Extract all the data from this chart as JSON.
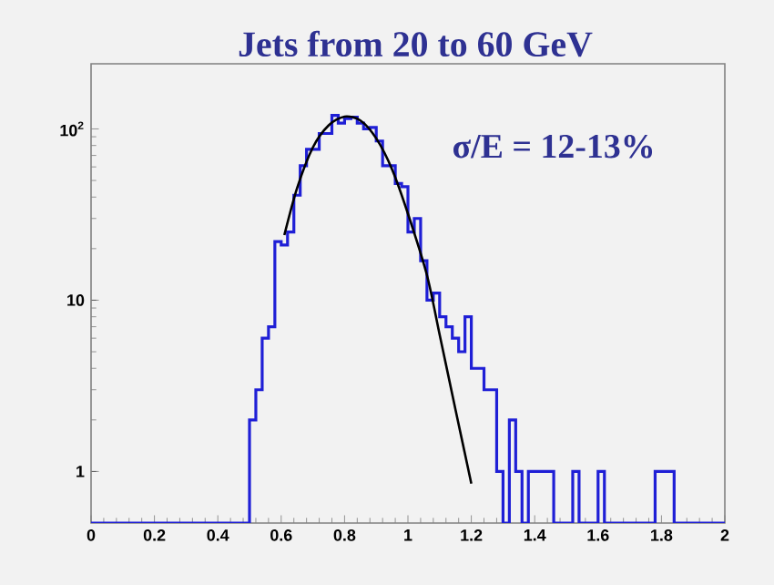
{
  "chart_data": {
    "type": "histogram",
    "title": "Jets from 20 to 60 GeV",
    "annotations": [
      "σ/E = 12-13%"
    ],
    "bins": [
      0,
      0.02,
      0.04,
      0.06,
      0.08,
      0.1,
      0.12,
      0.14,
      0.16,
      0.18,
      0.2,
      0.22,
      0.24,
      0.26,
      0.28,
      0.3,
      0.32,
      0.34,
      0.36,
      0.38,
      0.4,
      0.42,
      0.44,
      0.46,
      0.48,
      0.5,
      0.52,
      0.54,
      0.56,
      0.58,
      0.6,
      0.62,
      0.64,
      0.66,
      0.68,
      0.7,
      0.72,
      0.74,
      0.76,
      0.78,
      0.8,
      0.82,
      0.84,
      0.86,
      0.88,
      0.9,
      0.92,
      0.94,
      0.96,
      0.98,
      1,
      1.02,
      1.04,
      1.06,
      1.08,
      1.1,
      1.12,
      1.14,
      1.16,
      1.18,
      1.2,
      1.22,
      1.24,
      1.26,
      1.28,
      1.3,
      1.32,
      1.34,
      1.36,
      1.38,
      1.4,
      1.42,
      1.44,
      1.46,
      1.48,
      1.5,
      1.52,
      1.54,
      1.56,
      1.58,
      1.6,
      1.62,
      1.64,
      1.66,
      1.68,
      1.7,
      1.72,
      1.74,
      1.76,
      1.78,
      1.8,
      1.82,
      1.84,
      1.86,
      1.88,
      1.9,
      1.92,
      1.94,
      1.96,
      1.98,
      2
    ],
    "series": [
      {
        "color": "#1f1fd6",
        "values": [
          null,
          null,
          null,
          null,
          null,
          null,
          null,
          null,
          null,
          null,
          null,
          null,
          null,
          null,
          null,
          null,
          null,
          null,
          null,
          null,
          null,
          null,
          null,
          null,
          null,
          2,
          3,
          6,
          7,
          22,
          21,
          25,
          41,
          61,
          76,
          76,
          94,
          94,
          120,
          108,
          115,
          117,
          108,
          100,
          102,
          85,
          61,
          61,
          48,
          46,
          25,
          30,
          17,
          10,
          11,
          8,
          7,
          6,
          5,
          8,
          4,
          4,
          3,
          3,
          1,
          null,
          2,
          1,
          null,
          1,
          1,
          1,
          1,
          null,
          null,
          null,
          1,
          null,
          null,
          null,
          1,
          null,
          null,
          null,
          null,
          null,
          null,
          null,
          null,
          1,
          1,
          1,
          null,
          null,
          null,
          null,
          null,
          null,
          null,
          null
        ]
      },
      {
        "type": "line",
        "color": "#000000",
        "x": [
          0.61,
          0.65,
          0.7,
          0.75,
          0.8,
          0.85,
          0.9,
          0.95,
          1.0,
          1.06,
          1.1,
          1.15,
          1.2
        ],
        "values": [
          24,
          45,
          78,
          105,
          118,
          112,
          88,
          58,
          32,
          14,
          6.3,
          2.3,
          0.85
        ]
      }
    ],
    "xlim": [
      0,
      2
    ],
    "ylim": [
      0.5,
      240
    ],
    "log": "y",
    "xticks": [
      0,
      0.2,
      0.4,
      0.6,
      0.8,
      1,
      1.2,
      1.4,
      1.6,
      1.8,
      2
    ],
    "yticks": [
      1,
      10,
      {
        "value": 100,
        "label": "10$^{2}$"
      }
    ]
  }
}
